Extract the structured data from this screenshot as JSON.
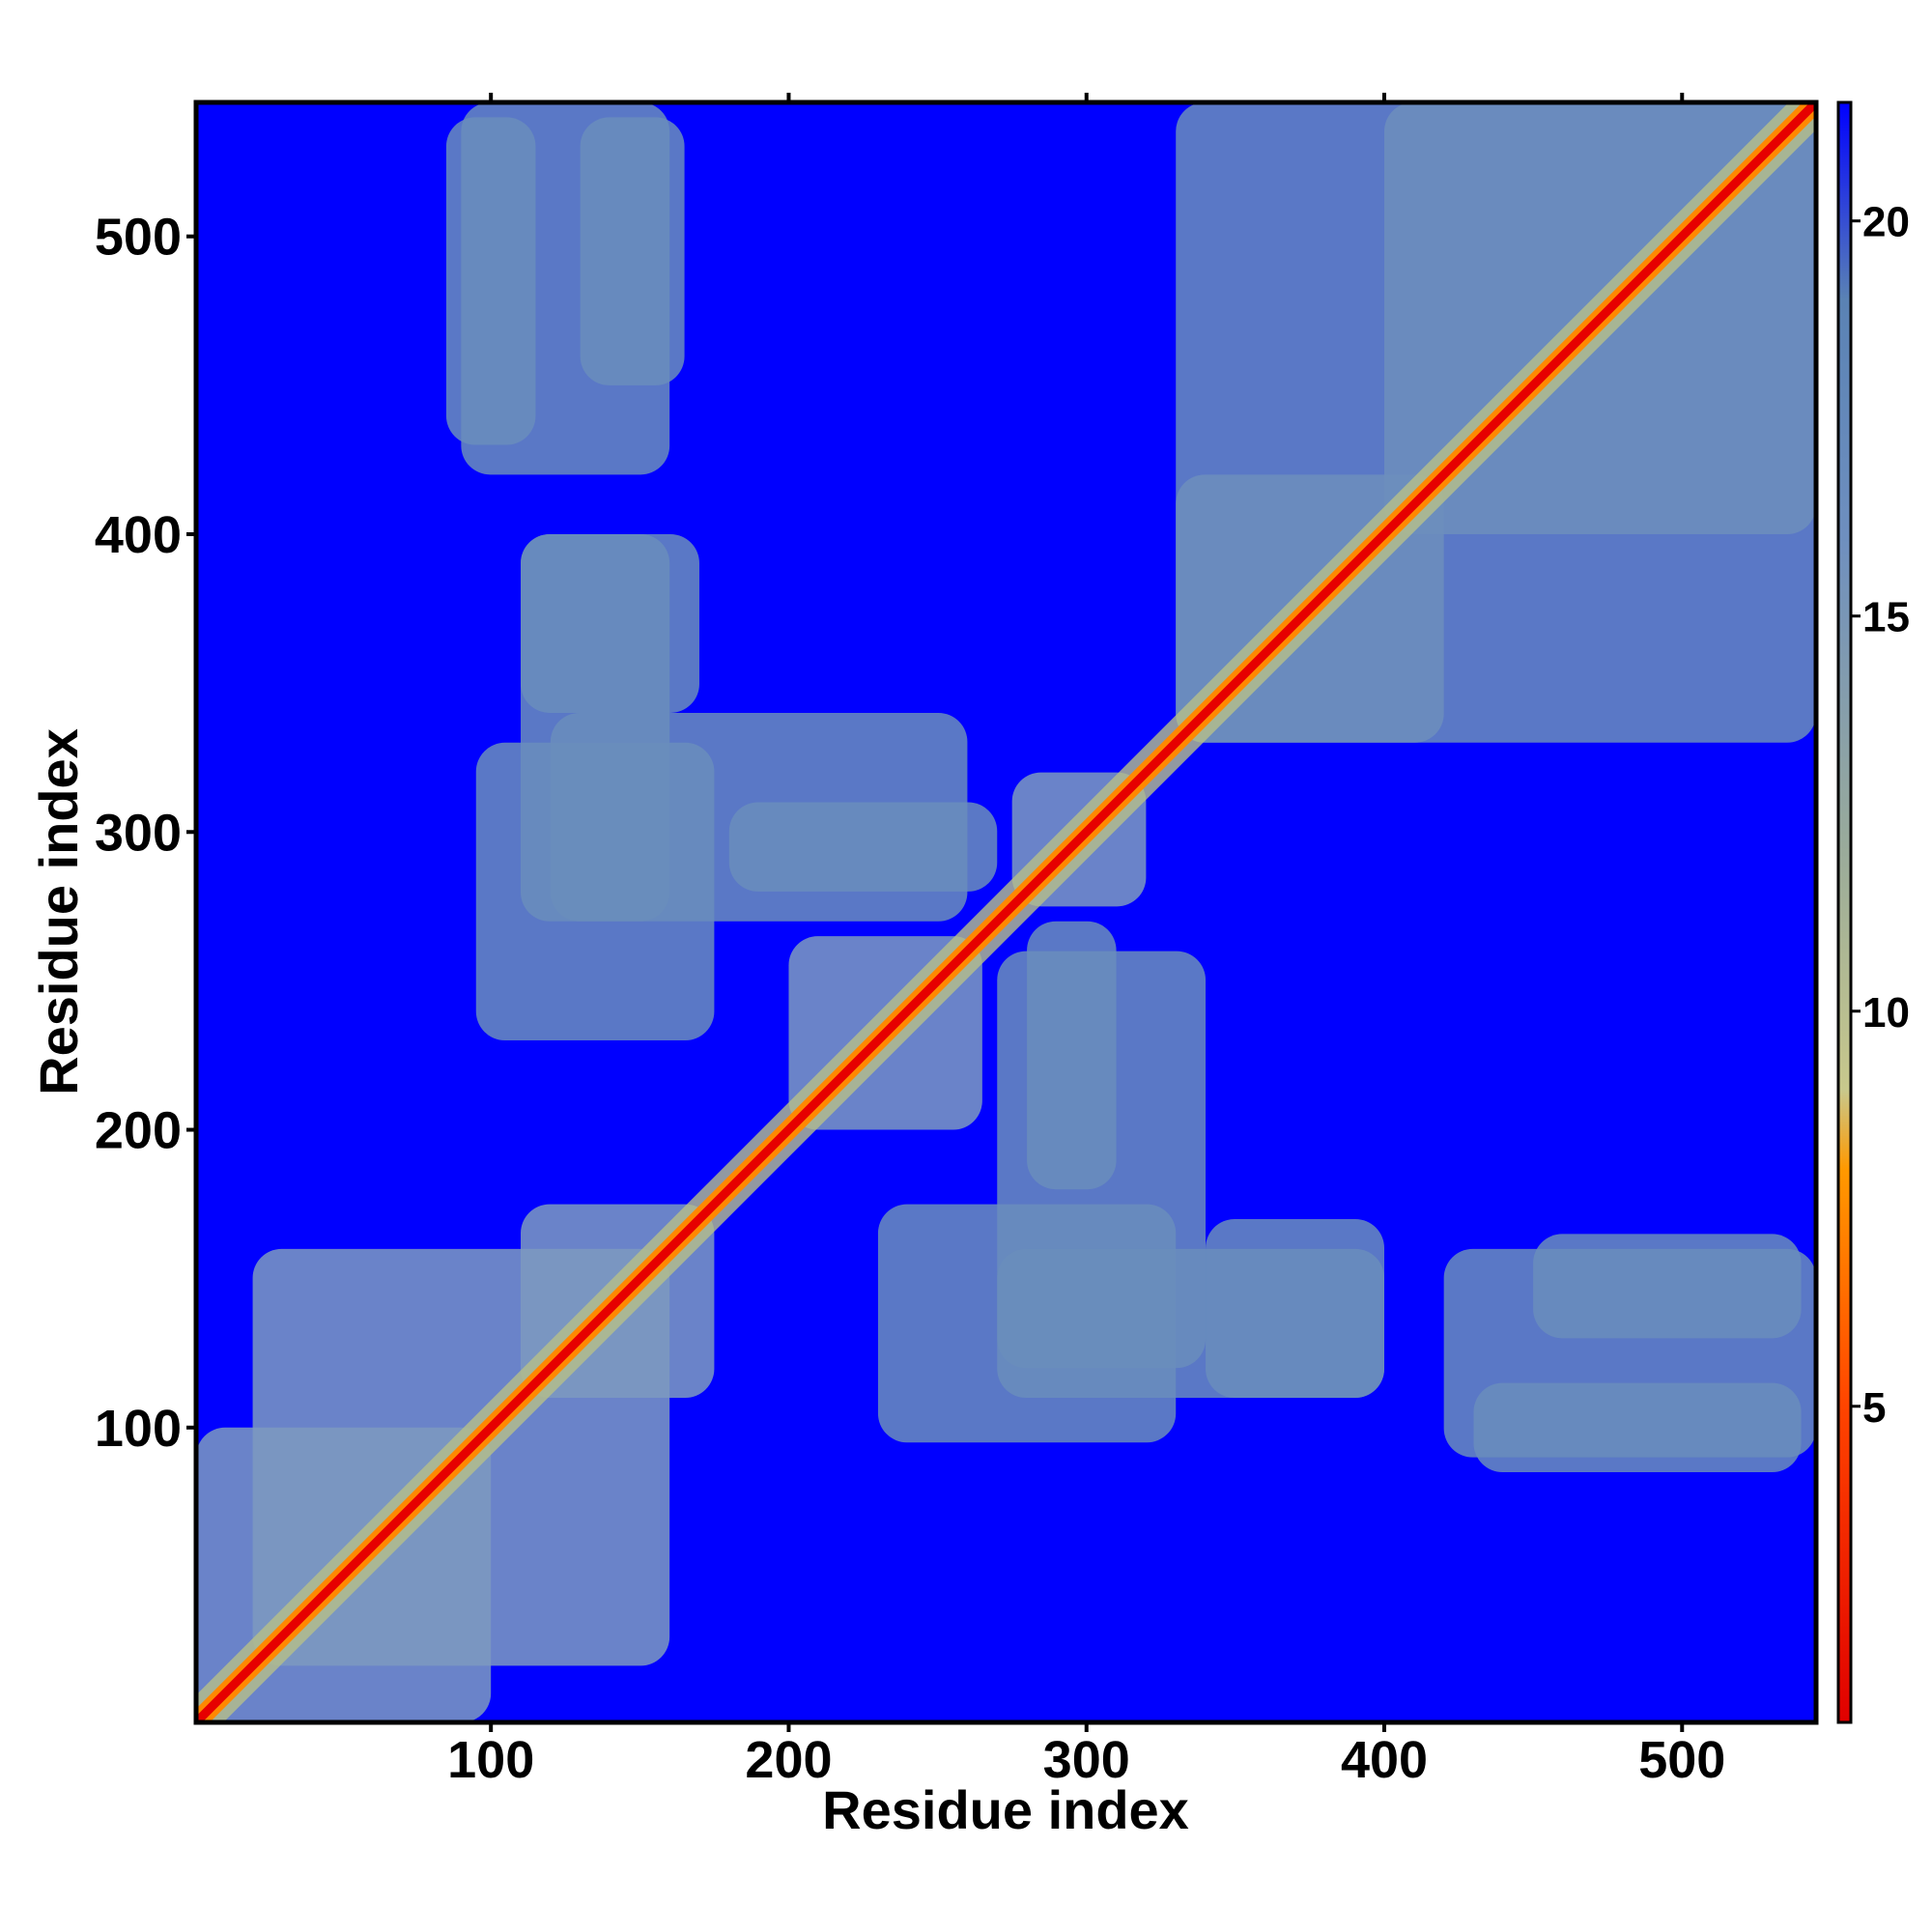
{
  "chart_data": {
    "type": "heatmap",
    "title": "",
    "xlabel": "Residue index",
    "ylabel": "Residue index",
    "xlim": [
      1,
      545
    ],
    "ylim": [
      1,
      545
    ],
    "x_ticks": [
      "100",
      "200",
      "300",
      "400",
      "500"
    ],
    "y_ticks": [
      "100",
      "200",
      "300",
      "400",
      "500"
    ],
    "colorbar": {
      "range": [
        1,
        21.5
      ],
      "ticks": [
        "5",
        "10",
        "15",
        "20"
      ],
      "colors": [
        {
          "value": 1,
          "color": "#e00000"
        },
        {
          "value": 5,
          "color": "#ff4400"
        },
        {
          "value": 8,
          "color": "#ff9900"
        },
        {
          "value": 9,
          "color": "#c8c88c"
        },
        {
          "value": 12,
          "color": "#9aab9a"
        },
        {
          "value": 16,
          "color": "#6e8fbf"
        },
        {
          "value": 19,
          "color": "#5a82b4"
        },
        {
          "value": 21.5,
          "color": "#0000ff"
        }
      ]
    },
    "contact_blocks": [
      {
        "x": [
          1,
          100
        ],
        "y": [
          1,
          100
        ],
        "level": "near"
      },
      {
        "x": [
          20,
          160
        ],
        "y": [
          20,
          160
        ],
        "level": "near"
      },
      {
        "x": [
          110,
          175
        ],
        "y": [
          110,
          175
        ],
        "level": "near"
      },
      {
        "x": [
          200,
          265
        ],
        "y": [
          200,
          265
        ],
        "level": "near"
      },
      {
        "x": [
          275,
          320
        ],
        "y": [
          275,
          320
        ],
        "level": "near"
      },
      {
        "x": [
          330,
          420
        ],
        "y": [
          330,
          420
        ],
        "level": "near"
      },
      {
        "x": [
          400,
          545
        ],
        "y": [
          400,
          545
        ],
        "level": "near"
      },
      {
        "x": [
          95,
          175
        ],
        "y": [
          230,
          330
        ],
        "level": "mid"
      },
      {
        "x": [
          180,
          270
        ],
        "y": [
          280,
          310
        ],
        "level": "mid"
      },
      {
        "x": [
          110,
          170
        ],
        "y": [
          340,
          400
        ],
        "level": "mid"
      },
      {
        "x": [
          85,
          115
        ],
        "y": [
          430,
          540
        ],
        "level": "mid"
      },
      {
        "x": [
          130,
          165
        ],
        "y": [
          450,
          540
        ],
        "level": "mid"
      },
      {
        "x": [
          270,
          340
        ],
        "y": [
          120,
          260
        ],
        "level": "mid"
      },
      {
        "x": [
          270,
          400
        ],
        "y": [
          110,
          160
        ],
        "level": "mid"
      },
      {
        "x": [
          330,
          545
        ],
        "y": [
          330,
          545
        ],
        "level": "mid"
      },
      {
        "x": [
          420,
          545
        ],
        "y": [
          90,
          160
        ],
        "level": "mid"
      }
    ]
  }
}
